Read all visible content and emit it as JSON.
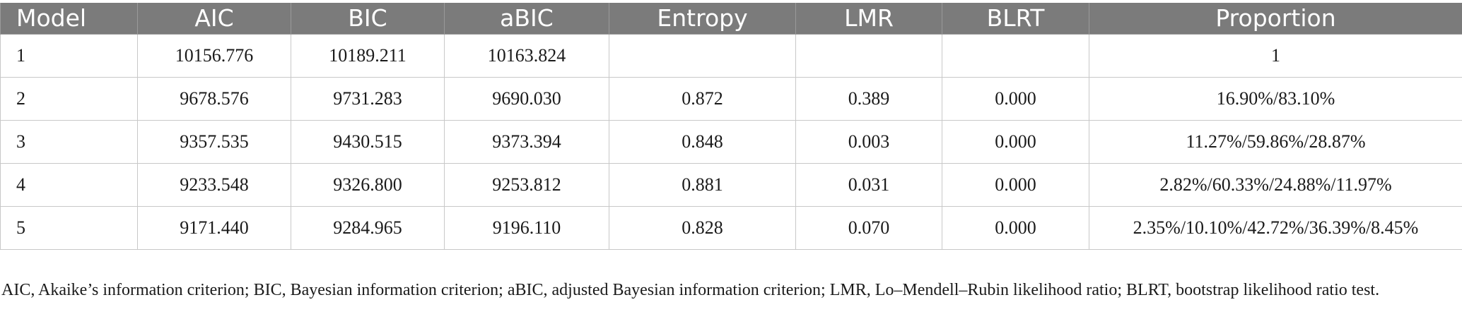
{
  "table": {
    "headers": [
      "Model",
      "AIC",
      "BIC",
      "aBIC",
      "Entropy",
      "LMR",
      "BLRT",
      "Proportion"
    ],
    "rows": [
      [
        "1",
        "10156.776",
        "10189.211",
        "10163.824",
        "",
        "",
        "",
        "1"
      ],
      [
        "2",
        "9678.576",
        "9731.283",
        "9690.030",
        "0.872",
        "0.389",
        "0.000",
        "16.90%/83.10%"
      ],
      [
        "3",
        "9357.535",
        "9430.515",
        "9373.394",
        "0.848",
        "0.003",
        "0.000",
        "11.27%/59.86%/28.87%"
      ],
      [
        "4",
        "9233.548",
        "9326.800",
        "9253.812",
        "0.881",
        "0.031",
        "0.000",
        "2.82%/60.33%/24.88%/11.97%"
      ],
      [
        "5",
        "9171.440",
        "9284.965",
        "9196.110",
        "0.828",
        "0.070",
        "0.000",
        "2.35%/10.10%/42.72%/36.39%/8.45%"
      ]
    ]
  },
  "footnote": "AIC, Akaike’s information criterion; BIC, Bayesian information criterion; aBIC, adjusted Bayesian information criterion; LMR, Lo–Mendell–Rubin likelihood ratio; BLRT, bootstrap likelihood ratio test.",
  "colors": {
    "header_bg": "#7b7b7b",
    "header_text": "#ffffff",
    "border": "#c8c8c8"
  }
}
